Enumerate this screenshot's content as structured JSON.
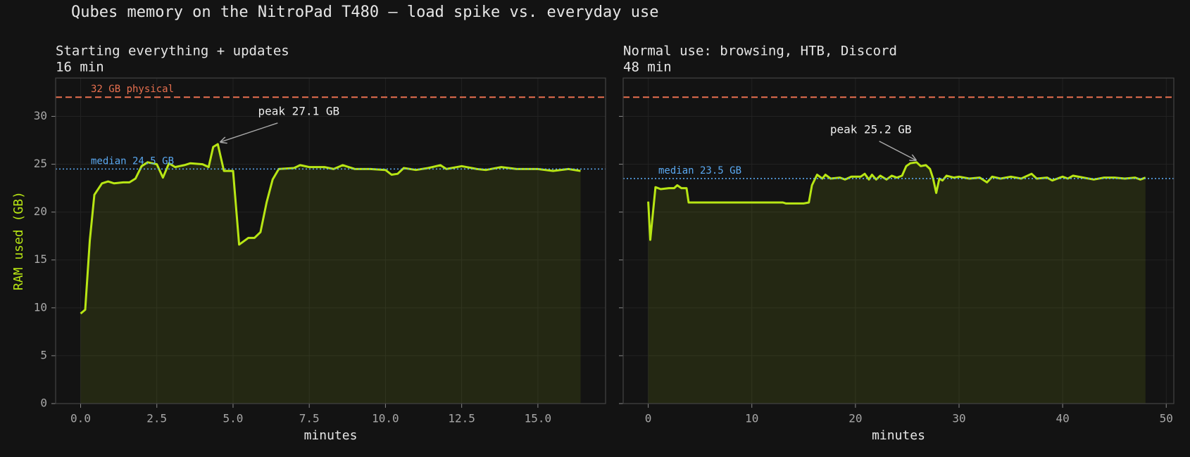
{
  "title": "Qubes memory on the NitroPad T480 — load spike vs. everyday use",
  "chart_data": [
    {
      "type": "line",
      "title": "Starting everything + updates",
      "subtitle": "16 min",
      "xlabel": "minutes",
      "ylabel": "RAM used (GB)",
      "color": "#b8e614",
      "grid": true,
      "ytick_labels": true,
      "x": [
        0.0,
        0.15,
        0.3,
        0.45,
        0.7,
        0.9,
        1.1,
        1.4,
        1.6,
        1.8,
        2.0,
        2.2,
        2.5,
        2.7,
        2.9,
        3.1,
        3.4,
        3.6,
        4.0,
        4.2,
        4.35,
        4.5,
        4.7,
        5.0,
        5.2,
        5.5,
        5.7,
        5.9,
        6.1,
        6.3,
        6.5,
        7.0,
        7.2,
        7.5,
        8.0,
        8.3,
        8.6,
        9.0,
        9.5,
        10.0,
        10.2,
        10.4,
        10.6,
        11.0,
        11.4,
        11.8,
        12.0,
        12.5,
        13.0,
        13.3,
        13.8,
        14.3,
        15.0,
        15.5,
        16.0,
        16.4
      ],
      "values": [
        9.4,
        9.8,
        17,
        21.8,
        23,
        23.2,
        23,
        23.1,
        23.1,
        23.5,
        24.8,
        25.2,
        25,
        23.6,
        25.1,
        24.7,
        24.9,
        25.1,
        25,
        24.7,
        26.8,
        27.1,
        24.3,
        24.3,
        16.6,
        17.3,
        17.3,
        17.9,
        21,
        23.4,
        24.5,
        24.6,
        24.9,
        24.7,
        24.7,
        24.5,
        24.9,
        24.5,
        24.5,
        24.4,
        23.9,
        24,
        24.6,
        24.4,
        24.6,
        24.9,
        24.5,
        24.8,
        24.5,
        24.4,
        24.7,
        24.5,
        24.5,
        24.3,
        24.5,
        24.3
      ],
      "xlim": [
        -0.82,
        17.22
      ],
      "ylim": [
        0,
        34
      ],
      "xticks": [
        {
          "value": 0,
          "label": "0.0"
        },
        2.5,
        {
          "value": 5,
          "label": "5.0"
        },
        7.5,
        {
          "value": 10,
          "label": "10.0"
        },
        12.5,
        {
          "value": 15,
          "label": "15.0"
        }
      ],
      "yticks": [
        0,
        5,
        10,
        15,
        20,
        25,
        30
      ],
      "hlines": [
        {
          "value": 32,
          "label": "32 GB physical",
          "color": "#e8704f",
          "style": "dashed"
        },
        {
          "value": 24.5,
          "label": "median 24.5 GB",
          "color": "#5aa8f0",
          "style": "dotted"
        }
      ],
      "annotations": [
        {
          "text": "peak 27.1 GB",
          "x": 4.5,
          "y": 27.1
        }
      ]
    },
    {
      "type": "line",
      "title": "Normal use: browsing, HTB, Discord",
      "subtitle": "48 min",
      "xlabel": "minutes",
      "color": "#b8e614",
      "grid": true,
      "ytick_labels": false,
      "x": [
        0,
        0.2,
        0.7,
        1.2,
        2,
        2.5,
        2.8,
        3.2,
        3.7,
        3.9,
        6,
        10,
        13,
        13.3,
        15,
        15.5,
        15.8,
        16.3,
        16.8,
        17.1,
        17.6,
        18.5,
        19,
        19.6,
        20.5,
        20.9,
        21.3,
        21.6,
        22,
        22.4,
        23,
        23.5,
        24,
        24.5,
        24.9,
        25.3,
        25.9,
        26.3,
        26.8,
        27.2,
        27.5,
        27.8,
        28.1,
        28.4,
        28.8,
        29.5,
        30,
        31,
        32,
        32.7,
        33.2,
        34,
        35,
        36,
        37,
        37.5,
        38.5,
        39,
        40,
        40.5,
        41,
        42,
        43,
        44,
        45,
        46,
        47,
        47.5,
        48
      ],
      "values": [
        21.1,
        17.1,
        22.6,
        22.4,
        22.5,
        22.5,
        22.8,
        22.5,
        22.5,
        21,
        21,
        21,
        21,
        20.9,
        20.9,
        21,
        22.8,
        23.9,
        23.5,
        23.9,
        23.5,
        23.6,
        23.4,
        23.7,
        23.7,
        24,
        23.4,
        23.9,
        23.4,
        23.8,
        23.4,
        23.8,
        23.6,
        23.8,
        24.8,
        25.1,
        25.2,
        24.8,
        24.9,
        24.5,
        23.5,
        22,
        23.5,
        23.3,
        23.8,
        23.6,
        23.7,
        23.5,
        23.6,
        23.1,
        23.7,
        23.5,
        23.7,
        23.5,
        24,
        23.5,
        23.6,
        23.3,
        23.7,
        23.5,
        23.8,
        23.6,
        23.4,
        23.6,
        23.6,
        23.5,
        23.6,
        23.4,
        23.6
      ],
      "xlim": [
        -2.42,
        50.73
      ],
      "ylim": [
        0,
        34
      ],
      "xticks": [
        0,
        10,
        20,
        30,
        40,
        50
      ],
      "yticks": [
        0,
        5,
        10,
        15,
        20,
        25,
        30
      ],
      "hlines": [
        {
          "value": 32,
          "color": "#e8704f",
          "style": "dashed"
        },
        {
          "value": 23.5,
          "label": "median 23.5 GB",
          "color": "#5aa8f0",
          "style": "dotted"
        }
      ],
      "annotations": [
        {
          "text": "peak 25.2 GB",
          "x": 25.9,
          "y": 25.2
        }
      ]
    }
  ]
}
